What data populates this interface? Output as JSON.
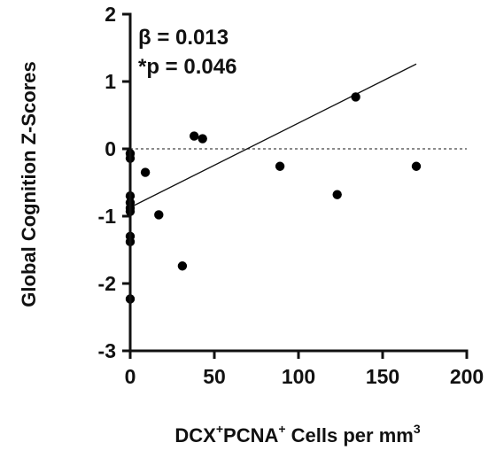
{
  "chart_data": {
    "type": "scatter",
    "xlabel": {
      "pre": "DCX",
      "sup1": "+",
      "mid": "PCNA",
      "sup2": "+",
      "post": " Cells per mm",
      "sup3": "3"
    },
    "ylabel": "Global Cognition Z-Scores",
    "xlim": [
      0,
      200
    ],
    "ylim": [
      -3,
      2
    ],
    "x_ticks": [
      "0",
      "50",
      "100",
      "150",
      "200"
    ],
    "y_ticks": [
      "-3",
      "-2",
      "-1",
      "0",
      "1",
      "2"
    ],
    "annotations": {
      "beta": "β = 0.013",
      "p": "*p = 0.046"
    },
    "reference_line_y": 0,
    "regression": {
      "x1": 0,
      "y1": -0.87,
      "x2": 170,
      "y2": 1.26
    },
    "points": [
      {
        "x": 0,
        "y": -0.07
      },
      {
        "x": 0,
        "y": -0.14
      },
      {
        "x": 0,
        "y": -0.7
      },
      {
        "x": 0,
        "y": -0.8
      },
      {
        "x": 0,
        "y": -0.88
      },
      {
        "x": 0,
        "y": -0.93
      },
      {
        "x": 0,
        "y": -1.3
      },
      {
        "x": 0,
        "y": -1.38
      },
      {
        "x": 0,
        "y": -2.23
      },
      {
        "x": 9,
        "y": -0.35
      },
      {
        "x": 17,
        "y": -0.98
      },
      {
        "x": 31,
        "y": -1.74
      },
      {
        "x": 38,
        "y": 0.19
      },
      {
        "x": 43,
        "y": 0.15
      },
      {
        "x": 89,
        "y": -0.26
      },
      {
        "x": 123,
        "y": -0.68
      },
      {
        "x": 134,
        "y": 0.77
      },
      {
        "x": 170,
        "y": -0.26
      }
    ]
  }
}
